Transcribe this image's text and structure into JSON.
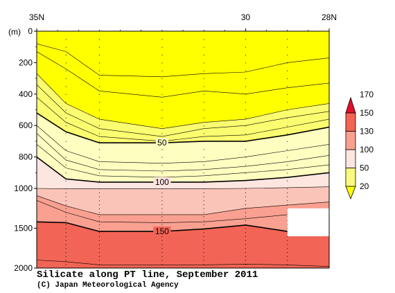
{
  "chart_data": {
    "type": "contour",
    "title": "Silicate along PT line, September 2011",
    "credit": "(C) Japan Meteorological Agency",
    "ylabel": "(m)",
    "x_axis": {
      "ticks": [
        {
          "value": 35,
          "label": "35N"
        },
        {
          "value": 30,
          "label": "30"
        },
        {
          "value": 28,
          "label": "28N"
        }
      ],
      "range": [
        35,
        28
      ]
    },
    "y_axis": {
      "ticks": [
        0,
        200,
        400,
        600,
        800,
        1000,
        1500,
        2000
      ],
      "range": [
        0,
        2000
      ],
      "scale": "piecewise-linear, 0-1000 m and 1000-2000 m each occupy half the axis",
      "inverted": true
    },
    "stations_lat": [
      35,
      34.3,
      33.5,
      32,
      31,
      30,
      29,
      28
    ],
    "contour_labels": [
      {
        "value": 50,
        "label": "50",
        "lat": 32,
        "depth": 710
      },
      {
        "value": 100,
        "label": "100",
        "lat": 32,
        "depth": 960
      },
      {
        "value": 150,
        "label": "150",
        "lat": 32,
        "depth": 1540
      }
    ],
    "contour_lines": [
      {
        "value": 5,
        "depths": [
          80,
          130,
          280,
          290,
          270,
          260,
          200,
          170
        ]
      },
      {
        "value": 10,
        "depths": [
          130,
          240,
          380,
          420,
          380,
          400,
          360,
          330
        ]
      },
      {
        "value": 20,
        "depths": [
          270,
          460,
          560,
          620,
          580,
          560,
          500,
          460
        ]
      },
      {
        "value": 30,
        "depths": [
          340,
          520,
          620,
          670,
          620,
          600,
          550,
          510
        ]
      },
      {
        "value": 40,
        "depths": [
          420,
          580,
          670,
          700,
          670,
          660,
          610,
          560
        ]
      },
      {
        "value": 50,
        "depths": [
          520,
          640,
          710,
          710,
          700,
          700,
          660,
          610
        ]
      },
      {
        "value": 60,
        "depths": [
          600,
          760,
          830,
          840,
          830,
          800,
          760,
          720
        ]
      },
      {
        "value": 70,
        "depths": [
          650,
          820,
          880,
          890,
          880,
          860,
          830,
          790
        ]
      },
      {
        "value": 80,
        "depths": [
          720,
          870,
          920,
          930,
          920,
          900,
          880,
          850
        ]
      },
      {
        "value": 100,
        "depths": [
          800,
          940,
          960,
          960,
          960,
          950,
          930,
          900
        ]
      },
      {
        "value": 110,
        "depths": [
          1000,
          1005,
          1005,
          1005,
          1005,
          1000,
          995,
          990
        ]
      },
      {
        "value": 130,
        "depths": [
          1090,
          1220,
          1330,
          1330,
          1330,
          1250,
          1210,
          1170
        ]
      },
      {
        "value": 140,
        "depths": [
          1150,
          1300,
          1420,
          1430,
          1420,
          1380,
          1330,
          1300
        ]
      },
      {
        "value": 150,
        "depths": [
          1420,
          1430,
          1540,
          1540,
          1510,
          1460,
          1540,
          1550
        ]
      },
      {
        "value": 160,
        "depths": [
          1900,
          1920,
          1960,
          1960,
          1960,
          1950,
          1960,
          1980
        ]
      }
    ],
    "missing_region": {
      "lat_from": 29,
      "lat_to": 28,
      "depth_from": 1250,
      "depth_to": 1600
    },
    "colorbar": {
      "levels": [
        20,
        50,
        100,
        130,
        150,
        170
      ],
      "labels": [
        "20",
        "50",
        "100",
        "130",
        "150",
        "170"
      ],
      "colors": [
        "#ffff00",
        "#fafa80",
        "#fde5e0",
        "#f9a090",
        "#f26455",
        "#e0102c"
      ],
      "extend": "both"
    },
    "fill_bands": [
      {
        "from_value": 0,
        "color": "#ffff00"
      },
      {
        "from_value": 20,
        "color": "#fcfc70"
      },
      {
        "from_value": 50,
        "color": "#fefec0"
      },
      {
        "from_value": 100,
        "color": "#fde5e0"
      },
      {
        "from_value": 110,
        "color": "#fbc4b8"
      },
      {
        "from_value": 130,
        "color": "#f9a090"
      },
      {
        "from_value": 150,
        "color": "#f26455"
      }
    ]
  }
}
